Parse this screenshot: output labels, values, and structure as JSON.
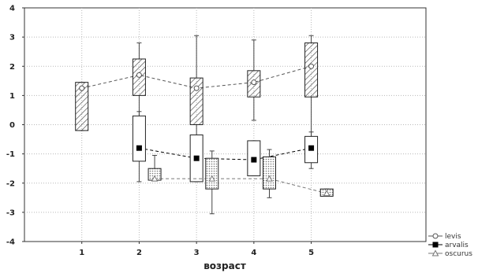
{
  "chart_data": {
    "type": "box",
    "title": "",
    "xlabel": "возраст",
    "ylabel": "",
    "ylim": [
      -4,
      4
    ],
    "xlim": [
      0,
      7
    ],
    "yticks": [
      4,
      3,
      2,
      1,
      0,
      -1,
      -2,
      -3,
      -4
    ],
    "xticks": [
      1,
      2,
      3,
      4,
      5
    ],
    "xtick_labels": [
      "1",
      "2",
      "3",
      "4",
      "5"
    ],
    "grid": true,
    "legend_position": "bottom-right",
    "series": [
      {
        "name": "levis",
        "marker": "circle-open",
        "line": "dash",
        "fill": "hatched",
        "color": "#555555",
        "boxes": [
          {
            "x": 1,
            "median": 1.25,
            "q1": -0.2,
            "q3": 1.45,
            "min": -0.2,
            "max": 1.45
          },
          {
            "x": 2,
            "median": 1.7,
            "q1": 1.0,
            "q3": 2.25,
            "min": -0.1,
            "max": 2.8
          },
          {
            "x": 3,
            "median": 1.25,
            "q1": 0.0,
            "q3": 1.6,
            "min": -0.9,
            "max": 3.05
          },
          {
            "x": 4,
            "median": 1.45,
            "q1": 0.95,
            "q3": 1.85,
            "min": 0.15,
            "max": 2.9
          },
          {
            "x": 5,
            "median": 2.0,
            "q1": 0.95,
            "q3": 2.8,
            "min": -1.1,
            "max": 3.05
          }
        ]
      },
      {
        "name": "arvalis",
        "marker": "square-filled",
        "line": "dash",
        "fill": "none",
        "color": "#000000",
        "boxes": [
          {
            "x": 2,
            "median": -0.8,
            "q1": -1.25,
            "q3": 0.3,
            "min": -1.95,
            "max": 0.45
          },
          {
            "x": 3,
            "median": -1.15,
            "q1": -1.95,
            "q3": -0.35,
            "min": -1.95,
            "max": -0.35
          },
          {
            "x": 4,
            "median": -1.2,
            "q1": -1.75,
            "q3": -0.55,
            "min": -1.75,
            "max": -0.55
          },
          {
            "x": 5,
            "median": -0.8,
            "q1": -1.3,
            "q3": -0.4,
            "min": -1.5,
            "max": -0.25
          }
        ]
      },
      {
        "name": "oscurus",
        "marker": "triangle-open",
        "line": "dash",
        "fill": "dotted",
        "color": "#777777",
        "boxes": [
          {
            "x": 2.27,
            "median": -1.85,
            "q1": -1.9,
            "q3": -1.5,
            "min": -1.9,
            "max": -1.05
          },
          {
            "x": 3.27,
            "median": -1.85,
            "q1": -2.2,
            "q3": -1.15,
            "min": -3.05,
            "max": -0.9
          },
          {
            "x": 4.27,
            "median": -1.85,
            "q1": -2.2,
            "q3": -1.1,
            "min": -2.5,
            "max": -0.85
          },
          {
            "x": 5.27,
            "median": -2.35,
            "q1": -2.45,
            "q3": -2.2,
            "min": -2.45,
            "max": -2.2
          }
        ]
      }
    ]
  }
}
